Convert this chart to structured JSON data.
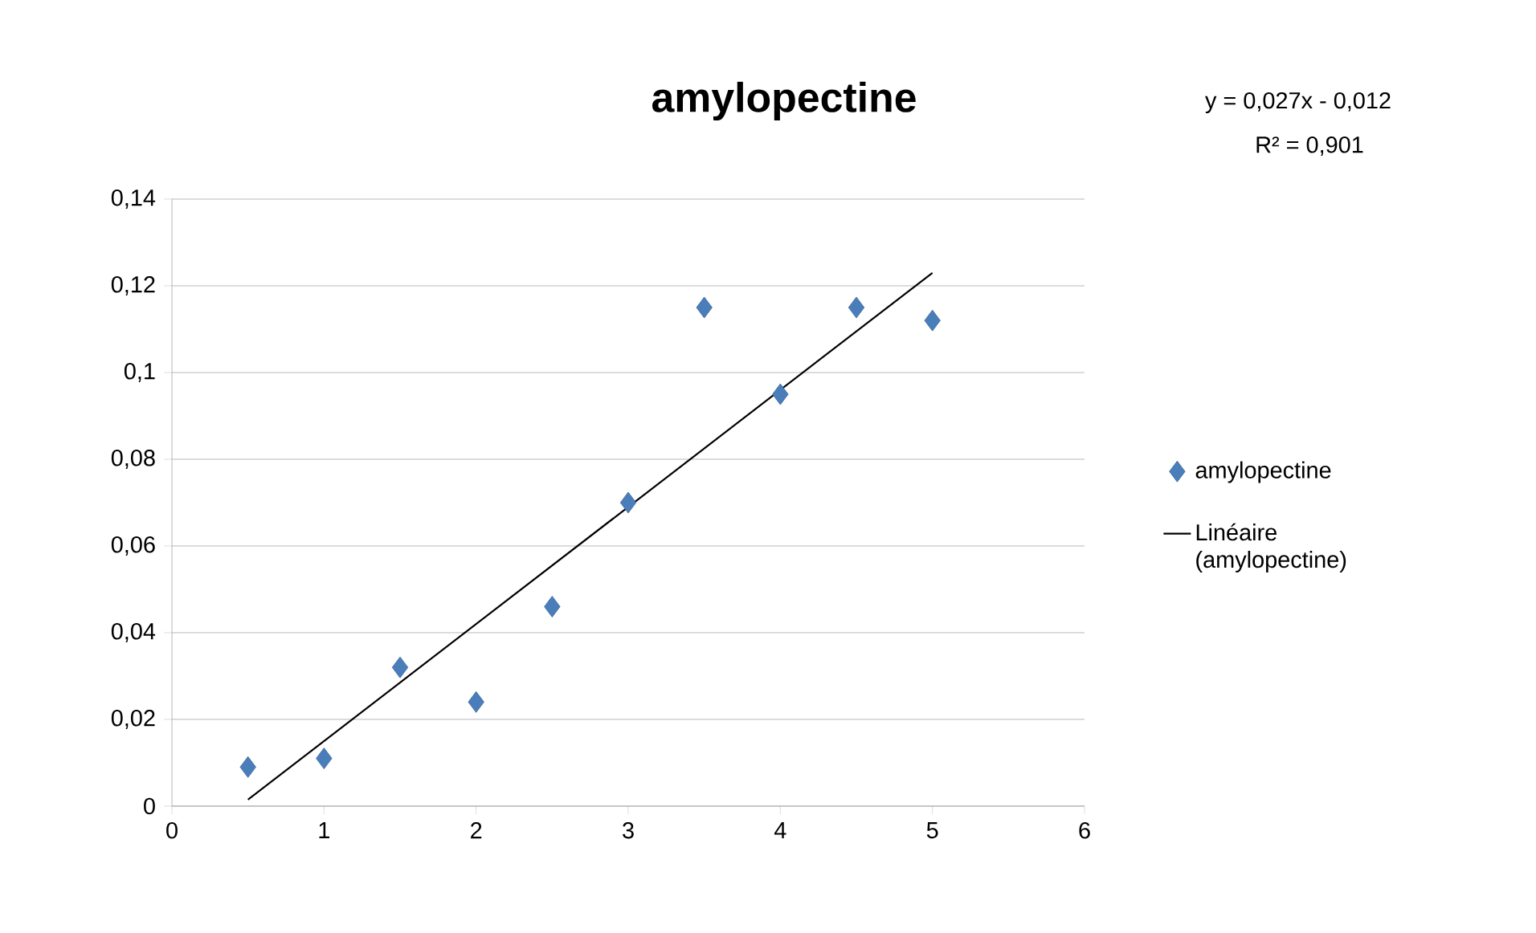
{
  "chart_data": {
    "type": "scatter",
    "title": "amylopectine",
    "annotations": [
      "y = 0,027x - 0,012",
      "R² = 0,901"
    ],
    "xlim": [
      0,
      6
    ],
    "xticks": [
      0,
      1,
      2,
      3,
      4,
      5,
      6
    ],
    "ylim": [
      0,
      0.14
    ],
    "yticks": [
      0,
      {
        "value": 0.02,
        "label": "0,02"
      },
      {
        "value": 0.04,
        "label": "0,04"
      },
      {
        "value": 0.06,
        "label": "0,06"
      },
      {
        "value": 0.08,
        "label": "0,08"
      },
      {
        "value": 0.1,
        "label": "0,1"
      },
      {
        "value": 0.12,
        "label": "0,12"
      },
      {
        "value": 0.14,
        "label": "0,14"
      }
    ],
    "grid": "y",
    "legend": "right",
    "series": [
      {
        "name": "amylopectine",
        "marker": "diamond",
        "color": "#4a7ebb",
        "x": [
          0.5,
          1,
          1.5,
          2,
          2.5,
          3,
          3.5,
          4,
          4.5,
          5
        ],
        "values": [
          0.009,
          0.011,
          0.032,
          0.024,
          0.046,
          0.07,
          0.115,
          0.095,
          0.115,
          0.112
        ]
      },
      {
        "name": "Linéaire (amylopectine)",
        "type": "line",
        "line_style": "solid",
        "color": "#000000",
        "x": [
          0.5,
          5
        ],
        "values": [
          0.0015,
          0.123
        ]
      }
    ]
  }
}
